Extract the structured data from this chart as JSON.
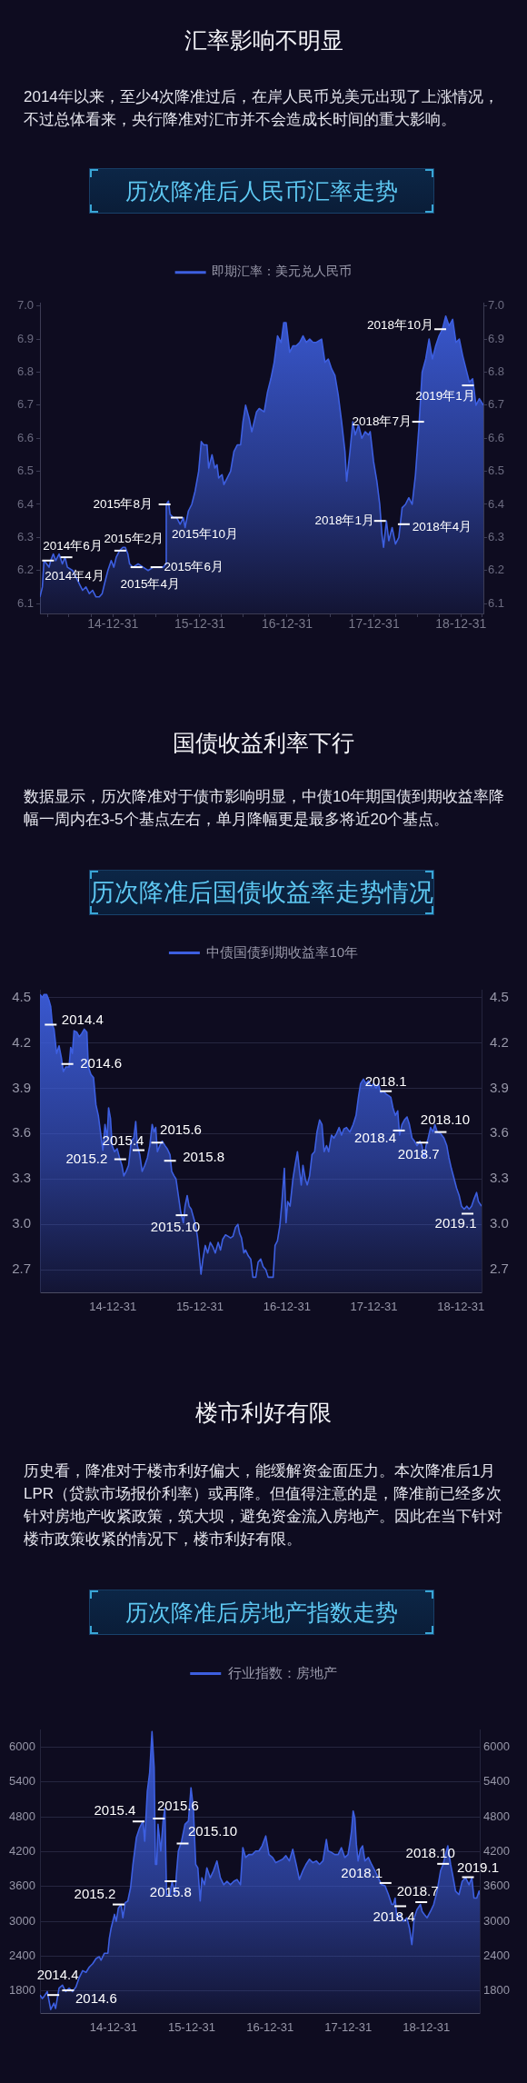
{
  "chart_data": [
    {
      "type": "area",
      "title": "历次降准后人民币汇率走势",
      "annotations": [
        "汇率影响不明显",
        "2014年以来，至少4次降准过后，在岸人民币兑美元出现了上涨情况，不过总体看来，央行降准对汇市并不会造成长时间的重大影响。",
        {
          "text": "2014年4月",
          "x": "2014-04-03",
          "y": 6.23
        },
        {
          "text": "2014年6月",
          "x": "2014-06-19",
          "y": 6.24
        },
        {
          "text": "2015年2月",
          "x": "2015-01-31",
          "y": 6.26
        },
        {
          "text": "2015年4月",
          "x": "2015-04-09",
          "y": 6.21
        },
        {
          "text": "2015年6月",
          "x": "2015-07-02",
          "y": 6.21
        },
        {
          "text": "2015年8月",
          "x": "2015-08-05",
          "y": 6.4
        },
        {
          "text": "2015年10月",
          "x": "2015-09-25",
          "y": 6.36
        },
        {
          "text": "2018年1月",
          "x": "2018-01-25",
          "y": 6.35
        },
        {
          "text": "2018年4月",
          "x": "2018-05-05",
          "y": 6.34
        },
        {
          "text": "2018年7月",
          "x": "2018-07-04",
          "y": 6.65
        },
        {
          "text": "2018年10月",
          "x": "2018-10-05",
          "y": 6.93
        },
        {
          "text": "2019年1月",
          "x": "2019-01-29",
          "y": 6.76
        }
      ],
      "x": [
        "2014-02-28",
        "2014-03-10",
        "2014-03-17",
        "2014-03-28",
        "2014-04-07",
        "2014-04-14",
        "2014-04-25",
        "2014-05-05",
        "2014-05-19",
        "2014-06-02",
        "2014-06-13",
        "2014-06-23",
        "2014-07-15",
        "2014-07-29",
        "2014-08-12",
        "2014-08-26",
        "2014-09-09",
        "2014-09-23",
        "2014-10-07",
        "2014-10-21",
        "2014-11-04",
        "2014-11-16",
        "2014-11-26",
        "2014-12-10",
        "2014-12-24",
        "2015-01-04",
        "2015-01-14",
        "2015-01-28",
        "2015-02-11",
        "2015-02-21",
        "2015-03-04",
        "2015-03-11",
        "2015-03-25",
        "2015-04-16",
        "2015-05-07",
        "2015-05-28",
        "2015-06-18",
        "2015-07-09",
        "2015-07-31",
        "2015-08-10",
        "2015-08-12",
        "2015-08-21",
        "2015-08-28",
        "2015-09-11",
        "2015-09-25",
        "2015-10-09",
        "2015-10-23",
        "2015-10-30",
        "2015-11-13",
        "2015-11-27",
        "2015-12-11",
        "2015-12-26",
        "2016-01-06",
        "2016-01-16",
        "2016-01-30",
        "2016-02-06",
        "2016-02-20",
        "2016-03-03",
        "2016-03-12",
        "2016-03-19",
        "2016-04-02",
        "2016-04-10",
        "2016-04-24",
        "2016-05-08",
        "2016-05-22",
        "2016-06-05",
        "2016-06-19",
        "2016-06-29",
        "2016-07-10",
        "2016-07-25",
        "2016-08-05",
        "2016-08-15",
        "2016-08-25",
        "2016-09-05",
        "2016-09-26",
        "2016-10-10",
        "2016-10-24",
        "2016-11-07",
        "2016-11-21",
        "2016-12-06",
        "2016-12-17",
        "2016-12-27",
        "2017-01-11",
        "2017-01-25",
        "2017-02-08",
        "2017-02-22",
        "2017-03-08",
        "2017-03-22",
        "2017-04-05",
        "2017-04-19",
        "2017-05-03",
        "2017-05-25",
        "2017-06-08",
        "2017-06-22",
        "2017-07-06",
        "2017-07-20",
        "2017-08-03",
        "2017-08-17",
        "2017-08-31",
        "2017-09-07",
        "2017-09-21",
        "2017-10-03",
        "2017-10-13",
        "2017-10-27",
        "2017-11-10",
        "2017-11-24",
        "2017-12-08",
        "2017-12-15",
        "2017-12-29",
        "2018-01-12",
        "2018-01-24",
        "2018-02-02",
        "2018-02-09",
        "2018-02-21",
        "2018-03-03",
        "2018-03-17",
        "2018-03-31",
        "2018-04-14",
        "2018-04-28",
        "2018-05-12",
        "2018-05-26",
        "2018-06-09",
        "2018-06-23",
        "2018-07-07",
        "2018-07-21",
        "2018-08-05",
        "2018-08-19",
        "2018-09-02",
        "2018-09-16",
        "2018-09-30",
        "2018-10-14",
        "2018-10-28",
        "2018-11-11",
        "2018-11-26",
        "2018-12-10",
        "2018-12-24",
        "2019-01-07",
        "2019-01-21",
        "2019-02-04",
        "2019-02-18",
        "2019-03-04",
        "2019-03-18",
        "2019-04-04"
      ],
      "series": [
        {
          "name": "即期汇率：美元兑人民币",
          "color": "#3d5fe0",
          "values": [
            6.12,
            6.15,
            6.23,
            6.22,
            6.21,
            6.23,
            6.25,
            6.23,
            6.25,
            6.22,
            6.24,
            6.21,
            6.2,
            6.18,
            6.16,
            6.14,
            6.15,
            6.13,
            6.14,
            6.12,
            6.12,
            6.13,
            6.16,
            6.2,
            6.23,
            6.21,
            6.24,
            6.26,
            6.27,
            6.27,
            6.25,
            6.22,
            6.21,
            6.22,
            6.21,
            6.2,
            6.21,
            6.21,
            6.21,
            6.22,
            6.4,
            6.41,
            6.37,
            6.36,
            6.36,
            6.34,
            6.36,
            6.33,
            6.38,
            6.4,
            6.44,
            6.5,
            6.59,
            6.58,
            6.58,
            6.51,
            6.55,
            6.51,
            6.52,
            6.48,
            6.49,
            6.46,
            6.48,
            6.5,
            6.56,
            6.58,
            6.58,
            6.65,
            6.7,
            6.66,
            6.62,
            6.65,
            6.68,
            6.69,
            6.68,
            6.74,
            6.78,
            6.83,
            6.91,
            6.89,
            6.95,
            6.95,
            6.86,
            6.88,
            6.88,
            6.89,
            6.91,
            6.89,
            6.9,
            6.89,
            6.89,
            6.9,
            6.83,
            6.84,
            6.81,
            6.79,
            6.73,
            6.65,
            6.56,
            6.47,
            6.56,
            6.65,
            6.61,
            6.64,
            6.6,
            6.62,
            6.61,
            6.62,
            6.53,
            6.47,
            6.4,
            6.31,
            6.27,
            6.35,
            6.29,
            6.33,
            6.28,
            6.3,
            6.39,
            6.4,
            6.42,
            6.4,
            6.49,
            6.63,
            6.8,
            6.84,
            6.9,
            6.84,
            6.88,
            6.91,
            6.93,
            6.97,
            6.94,
            6.96,
            6.89,
            6.9,
            6.85,
            6.81,
            6.77,
            6.78,
            6.7,
            6.72,
            6.7
          ]
        }
      ],
      "xlim": [
        "2014-02-28",
        "2019-04-04"
      ],
      "xticks": [
        {
          "value": "2014-03-31",
          "label": null
        },
        {
          "value": "2014-06-30",
          "label": null
        },
        {
          "value": "2014-09-30",
          "label": null
        },
        {
          "value": "2014-12-31",
          "label": "14-12-31"
        },
        {
          "value": "2015-03-31",
          "label": null
        },
        {
          "value": "2015-06-30",
          "label": null
        },
        {
          "value": "2015-09-30",
          "label": null
        },
        {
          "value": "2015-12-31",
          "label": "15-12-31"
        },
        {
          "value": "2016-03-31",
          "label": null
        },
        {
          "value": "2016-06-30",
          "label": null
        },
        {
          "value": "2016-09-30",
          "label": null
        },
        {
          "value": "2016-12-31",
          "label": "16-12-31"
        },
        {
          "value": "2017-03-31",
          "label": null
        },
        {
          "value": "2017-06-30",
          "label": null
        },
        {
          "value": "2017-09-30",
          "label": null
        },
        {
          "value": "2017-12-31",
          "label": "17-12-31"
        },
        {
          "value": "2018-03-31",
          "label": null
        },
        {
          "value": "2018-06-30",
          "label": null
        },
        {
          "value": "2018-09-30",
          "label": null
        },
        {
          "value": "2018-12-31",
          "label": "18-12-31"
        },
        {
          "value": "2019-03-31",
          "label": null
        }
      ],
      "ylim": [
        6.07,
        7.01
      ],
      "yticks": [
        6.1,
        6.2,
        6.3,
        6.4,
        6.5,
        6.6,
        6.7,
        6.8,
        6.9,
        {
          "value": 7,
          "label": "7.0"
        }
      ],
      "y2lim": [
        6.07,
        7.01
      ],
      "y2ticks": [
        6.1,
        6.2,
        6.3,
        6.4,
        6.5,
        6.6,
        6.7,
        6.8,
        6.9,
        {
          "value": 7,
          "label": "7.0"
        }
      ],
      "grid": false,
      "legend": "top"
    },
    {
      "type": "area",
      "title": "历次降准后国债收益率走势情况",
      "annotations": [
        "国债收益利率下行",
        "数据显示，历次降准对于债市影响明显，中债10年期国债到期收益率降幅一周内在3-5个基点左右，单月降幅更是最多将近20个基点。",
        {
          "text": "2014.4",
          "x": "2014-04-14",
          "y": 4.32
        },
        {
          "text": "2014.6",
          "x": "2014-06-23",
          "y": 4.06
        },
        {
          "text": "2015.2",
          "x": "2015-01-31",
          "y": 3.43
        },
        {
          "text": "2015.4",
          "x": "2015-04-18",
          "y": 3.49
        },
        {
          "text": "2015.6",
          "x": "2015-07-05",
          "y": 3.54
        },
        {
          "text": "2015.8",
          "x": "2015-08-28",
          "y": 3.42
        },
        {
          "text": "2015.10",
          "x": "2015-10-16",
          "y": 3.06
        },
        {
          "text": "2018.1",
          "x": "2018-02-19",
          "y": 3.88
        },
        {
          "text": "2018.4",
          "x": "2018-04-15",
          "y": 3.62
        },
        {
          "text": "2018.7",
          "x": "2018-07-22",
          "y": 3.54
        },
        {
          "text": "2018.10",
          "x": "2018-10-07",
          "y": 3.61
        },
        {
          "text": "2019.1",
          "x": "2019-01-28",
          "y": 3.07
        }
      ],
      "x": [
        "2014-02-28",
        "2014-03-10",
        "2014-03-17",
        "2014-03-28",
        "2014-04-07",
        "2014-04-14",
        "2014-04-21",
        "2014-04-28",
        "2014-05-09",
        "2014-05-19",
        "2014-05-29",
        "2014-06-06",
        "2014-06-16",
        "2014-06-30",
        "2014-07-07",
        "2014-07-14",
        "2014-07-21",
        "2014-08-02",
        "2014-08-12",
        "2014-08-22",
        "2014-09-02",
        "2014-09-13",
        "2014-09-19",
        "2014-09-30",
        "2014-10-11",
        "2014-10-21",
        "2014-10-31",
        "2014-11-09",
        "2014-11-19",
        "2014-11-28",
        "2014-12-07",
        "2014-12-13",
        "2014-12-21",
        "2014-12-28",
        "2015-01-07",
        "2015-01-18",
        "2015-01-28",
        "2015-02-07",
        "2015-02-15",
        "2015-02-25",
        "2015-03-07",
        "2015-03-18",
        "2015-03-29",
        "2015-04-06",
        "2015-04-13",
        "2015-04-23",
        "2015-05-03",
        "2015-05-14",
        "2015-05-25",
        "2015-06-04",
        "2015-06-14",
        "2015-06-22",
        "2015-06-29",
        "2015-07-06",
        "2015-07-16",
        "2015-07-26",
        "2015-08-07",
        "2015-08-16",
        "2015-08-28",
        "2015-09-04",
        "2015-09-14",
        "2015-09-22",
        "2015-10-02",
        "2015-10-12",
        "2015-10-23",
        "2015-10-30",
        "2015-11-08",
        "2015-11-16",
        "2015-11-25",
        "2015-12-02",
        "2015-12-11",
        "2015-12-21",
        "2015-12-28",
        "2016-01-05",
        "2016-01-13",
        "2016-01-23",
        "2016-02-02",
        "2016-02-13",
        "2016-02-24",
        "2016-03-05",
        "2016-03-17",
        "2016-03-27",
        "2016-04-05",
        "2016-04-17",
        "2016-04-28",
        "2016-05-08",
        "2016-05-18",
        "2016-05-29",
        "2016-06-08",
        "2016-06-15",
        "2016-06-23",
        "2016-07-03",
        "2016-07-10",
        "2016-07-22",
        "2016-08-01",
        "2016-08-10",
        "2016-08-22",
        "2016-09-01",
        "2016-09-12",
        "2016-09-22",
        "2016-10-03",
        "2016-10-13",
        "2016-11-03",
        "2016-11-11",
        "2016-11-21",
        "2016-12-01",
        "2016-12-10",
        "2016-12-20",
        "2016-12-27",
        "2017-01-03",
        "2017-01-13",
        "2017-01-25",
        "2017-02-03",
        "2017-02-13",
        "2017-02-22",
        "2017-03-01",
        "2017-03-08",
        "2017-03-18",
        "2017-03-26",
        "2017-04-05",
        "2017-04-15",
        "2017-04-26",
        "2017-05-06",
        "2017-05-17",
        "2017-05-27",
        "2017-06-05",
        "2017-06-15",
        "2017-06-24",
        "2017-07-06",
        "2017-07-16",
        "2017-07-27",
        "2017-08-07",
        "2017-08-17",
        "2017-08-27",
        "2017-09-07",
        "2017-09-21",
        "2017-10-05",
        "2017-10-17",
        "2017-10-27",
        "2017-11-05",
        "2017-11-17",
        "2017-11-28",
        "2017-12-08",
        "2017-12-19",
        "2017-12-29",
        "2018-01-09",
        "2018-01-19",
        "2018-01-29",
        "2018-02-09",
        "2018-02-21",
        "2018-03-03",
        "2018-03-12",
        "2018-03-21",
        "2018-03-31",
        "2018-04-10",
        "2018-04-18",
        "2018-04-28",
        "2018-05-08",
        "2018-05-19",
        "2018-05-29",
        "2018-06-09",
        "2018-06-19",
        "2018-06-30",
        "2018-07-12",
        "2018-07-21",
        "2018-07-29",
        "2018-08-07",
        "2018-08-16",
        "2018-08-26",
        "2018-09-05",
        "2018-09-13",
        "2018-09-23",
        "2018-10-07",
        "2018-10-21",
        "2018-11-02",
        "2018-11-11",
        "2018-11-21",
        "2018-12-03",
        "2018-12-13",
        "2018-12-24",
        "2019-01-03",
        "2019-01-14",
        "2019-01-25",
        "2019-02-04",
        "2019-02-14",
        "2019-02-25",
        "2019-03-07",
        "2019-03-15",
        "2019-03-28"
      ],
      "series": [
        {
          "name": "中债国债到期收益率10年",
          "color": "#3d5fe0",
          "values": [
            4.52,
            4.5,
            4.52,
            4.52,
            4.48,
            4.44,
            4.32,
            4.29,
            4.13,
            4.18,
            4.1,
            4.01,
            4.04,
            4.04,
            4.17,
            4.13,
            4.28,
            4.27,
            4.24,
            4.26,
            4.29,
            4.27,
            4.04,
            3.99,
            3.97,
            3.79,
            3.72,
            3.61,
            3.49,
            3.66,
            3.57,
            3.77,
            3.7,
            3.52,
            3.48,
            3.5,
            3.44,
            3.39,
            3.32,
            3.35,
            3.39,
            3.55,
            3.57,
            3.68,
            3.52,
            3.46,
            3.35,
            3.39,
            3.44,
            3.52,
            3.66,
            3.61,
            3.64,
            3.48,
            3.52,
            3.55,
            3.52,
            3.5,
            3.46,
            3.35,
            3.32,
            3.3,
            3.19,
            3.08,
            3.01,
            3.12,
            3.19,
            3.12,
            3.1,
            3.06,
            3.01,
            2.92,
            2.81,
            2.67,
            2.77,
            2.86,
            2.81,
            2.88,
            2.85,
            2.81,
            2.88,
            2.83,
            2.9,
            2.93,
            2.92,
            2.91,
            2.92,
            2.98,
            3.0,
            2.94,
            2.91,
            2.81,
            2.83,
            2.79,
            2.77,
            2.65,
            2.65,
            2.75,
            2.77,
            2.72,
            2.7,
            2.65,
            2.65,
            2.86,
            2.89,
            2.99,
            3.15,
            3.37,
            3.01,
            3.15,
            3.12,
            3.3,
            3.39,
            3.48,
            3.35,
            3.26,
            3.39,
            3.3,
            3.26,
            3.32,
            3.46,
            3.48,
            3.61,
            3.69,
            3.66,
            3.48,
            3.52,
            3.48,
            3.59,
            3.57,
            3.6,
            3.64,
            3.59,
            3.63,
            3.64,
            3.61,
            3.66,
            3.72,
            3.84,
            3.93,
            3.96,
            3.93,
            3.95,
            3.91,
            3.93,
            3.9,
            3.93,
            3.87,
            3.88,
            3.86,
            3.85,
            3.84,
            3.77,
            3.72,
            3.75,
            3.59,
            3.66,
            3.69,
            3.71,
            3.66,
            3.57,
            3.55,
            3.52,
            3.55,
            3.52,
            3.44,
            3.52,
            3.57,
            3.64,
            3.61,
            3.66,
            3.61,
            3.6,
            3.57,
            3.52,
            3.44,
            3.37,
            3.3,
            3.24,
            3.19,
            3.12,
            3.1,
            3.12,
            3.1,
            3.12,
            3.17,
            3.21,
            3.15,
            3.12
          ]
        }
      ],
      "xlim": [
        "2014-02-28",
        "2019-03-28"
      ],
      "xticks": [
        {
          "value": "2014-12-31",
          "label": "14-12-31"
        },
        {
          "value": "2015-12-31",
          "label": "15-12-31"
        },
        {
          "value": "2016-12-31",
          "label": "16-12-31"
        },
        {
          "value": "2017-12-31",
          "label": "17-12-31"
        },
        {
          "value": "2018-12-31",
          "label": "18-12-31"
        }
      ],
      "ylim": [
        2.55,
        4.55
      ],
      "yticks": [
        2.7,
        {
          "value": 3,
          "label": "3.0"
        },
        3.3,
        3.6,
        3.9,
        4.2,
        4.5
      ],
      "y2lim": [
        2.55,
        4.55
      ],
      "y2ticks": [
        2.7,
        {
          "value": 3,
          "label": "3.0"
        },
        3.3,
        3.6,
        3.9,
        4.2,
        4.5
      ],
      "grid": "y",
      "legend": "top"
    },
    {
      "type": "area",
      "title": "历次降准后房地产指数走势",
      "annotations": [
        "楼市利好有限",
        "历史看，降准对于楼市利好偏大，能缓解资金面压力。本次降准后1月LPR（贷款市场报价利率）或再降。但值得注意的是，降准前已经多次针对房地产收紧政策，筑大坝，避免资金流入房地产。因此在当下针对楼市政策收紧的情况下，楼市利好有限。",
        {
          "text": "2014.4",
          "x": "2014-03-25",
          "y": 1730
        },
        {
          "text": "2014.6",
          "x": "2014-06-02",
          "y": 1810
        },
        {
          "text": "2015.2",
          "x": "2015-01-24",
          "y": 3290
        },
        {
          "text": "2015.4",
          "x": "2015-04-27",
          "y": 4720
        },
        {
          "text": "2015.6",
          "x": "2015-07-31",
          "y": 4770
        },
        {
          "text": "2015.8",
          "x": "2015-09-24",
          "y": 3690
        },
        {
          "text": "2015.10",
          "x": "2015-11-19",
          "y": 4340
        },
        {
          "text": "2018.1",
          "x": "2018-06-23",
          "y": 3660
        },
        {
          "text": "2018.4",
          "x": "2018-08-31",
          "y": 3260
        },
        {
          "text": "2018.7",
          "x": "2018-12-07",
          "y": 3330
        },
        {
          "text": "2018.10",
          "x": "2019-03-19",
          "y": 3990
        },
        {
          "text": "2019.1",
          "x": "2019-07-13",
          "y": 3760
        }
      ],
      "x": [
        "2014-01-22",
        "2014-02-02",
        "2014-02-09",
        "2014-02-25",
        "2014-03-13",
        "2014-03-28",
        "2014-04-05",
        "2014-04-21",
        "2014-05-07",
        "2014-05-22",
        "2014-06-07",
        "2014-06-23",
        "2014-07-09",
        "2014-07-24",
        "2014-08-09",
        "2014-08-25",
        "2014-09-09",
        "2014-09-25",
        "2014-10-11",
        "2014-10-26",
        "2014-11-03",
        "2014-11-19",
        "2014-12-05",
        "2014-12-12",
        "2014-12-20",
        "2015-01-05",
        "2015-01-13",
        "2015-01-23",
        "2015-02-05",
        "2015-02-13",
        "2015-02-24",
        "2015-03-08",
        "2015-03-21",
        "2015-04-01",
        "2015-04-17",
        "2015-05-02",
        "2015-05-18",
        "2015-05-26",
        "2015-06-07",
        "2015-06-18",
        "2015-06-29",
        "2015-07-09",
        "2015-07-15",
        "2015-07-21",
        "2015-07-27",
        "2015-08-09",
        "2015-08-20",
        "2015-08-28",
        "2015-09-05",
        "2015-09-20",
        "2015-10-01",
        "2015-10-14",
        "2015-10-22",
        "2015-10-30",
        "2015-11-14",
        "2015-11-30",
        "2015-12-16",
        "2015-12-28",
        "2016-01-08",
        "2016-01-19",
        "2016-01-29",
        "2016-02-09",
        "2016-02-17",
        "2016-02-29",
        "2016-03-11",
        "2016-03-27",
        "2016-04-11",
        "2016-04-27",
        "2016-05-13",
        "2016-05-29",
        "2016-06-13",
        "2016-06-29",
        "2016-07-15",
        "2016-07-30",
        "2016-08-15",
        "2016-08-26",
        "2016-09-08",
        "2016-09-23",
        "2016-10-09",
        "2016-10-25",
        "2016-11-09",
        "2016-11-24",
        "2016-12-11",
        "2016-12-26",
        "2017-01-12",
        "2017-01-27",
        "2017-02-12",
        "2017-02-28",
        "2017-03-15",
        "2017-03-31",
        "2017-04-16",
        "2017-05-02",
        "2017-05-17",
        "2017-06-02",
        "2017-06-17",
        "2017-07-03",
        "2017-07-19",
        "2017-08-04",
        "2017-08-19",
        "2017-09-04",
        "2017-09-20",
        "2017-09-28",
        "2017-10-13",
        "2017-10-29",
        "2017-11-14",
        "2017-11-29",
        "2017-12-15",
        "2017-12-30",
        "2018-01-07",
        "2018-01-15",
        "2018-01-23",
        "2018-01-31",
        "2018-02-07",
        "2018-02-15",
        "2018-02-26",
        "2018-03-08",
        "2018-03-19",
        "2018-04-04",
        "2018-04-19",
        "2018-05-05",
        "2018-05-20",
        "2018-06-05",
        "2018-06-21",
        "2018-07-07",
        "2018-07-22",
        "2018-07-30",
        "2018-08-07",
        "2018-08-15",
        "2018-08-31",
        "2018-09-15",
        "2018-10-01",
        "2018-10-13",
        "2018-10-24",
        "2018-11-04",
        "2018-11-17",
        "2018-12-03",
        "2018-12-11",
        "2018-12-21",
        "2019-01-03",
        "2019-01-19",
        "2019-02-03",
        "2019-02-19",
        "2019-03-07",
        "2019-03-19",
        "2019-03-30",
        "2019-04-10",
        "2019-04-23",
        "2019-05-05",
        "2019-05-16",
        "2019-06-01",
        "2019-06-16",
        "2019-07-02",
        "2019-07-18",
        "2019-07-31",
        "2019-08-10",
        "2019-08-23",
        "2019-09-03",
        "2019-09-06"
      ],
      "series": [
        {
          "name": "行业指数：房地产",
          "color": "#3d5fe0",
          "values": [
            1730,
            1670,
            1700,
            1790,
            1480,
            1590,
            1500,
            1850,
            1900,
            1790,
            1850,
            1790,
            1870,
            2030,
            2150,
            2120,
            2210,
            2270,
            2360,
            2390,
            2330,
            2450,
            2450,
            2710,
            2880,
            3120,
            3000,
            3230,
            3290,
            3060,
            3320,
            3350,
            3580,
            3980,
            4440,
            4610,
            4730,
            4380,
            5240,
            5560,
            6270,
            5650,
            3980,
            3980,
            4670,
            4210,
            4730,
            4950,
            3460,
            3460,
            3690,
            3460,
            3860,
            4210,
            4380,
            4670,
            4730,
            5300,
            4950,
            3980,
            3920,
            3350,
            3750,
            3630,
            3920,
            3750,
            3870,
            4040,
            3750,
            3630,
            3690,
            3630,
            3690,
            3720,
            3630,
            4270,
            4100,
            4150,
            4150,
            4210,
            4210,
            4300,
            4470,
            4150,
            4100,
            4010,
            4040,
            4070,
            4130,
            4040,
            4240,
            3980,
            3720,
            3870,
            3980,
            4070,
            4010,
            4040,
            3980,
            4040,
            4410,
            4210,
            4190,
            4150,
            4150,
            4270,
            4100,
            4150,
            4330,
            4540,
            4900,
            4780,
            4330,
            4040,
            4240,
            4300,
            4040,
            4100,
            3980,
            3870,
            3750,
            3630,
            3610,
            3460,
            3290,
            3290,
            3400,
            3060,
            3120,
            3000,
            3060,
            2880,
            2600,
            3060,
            3200,
            3290,
            3170,
            3120,
            3060,
            3170,
            3290,
            3520,
            3870,
            3980,
            4150,
            4300,
            3980,
            3750,
            3520,
            3460,
            3690,
            3750,
            3630,
            3750,
            3400,
            3400,
            3520,
            3460
          ]
        }
      ],
      "xlim": [
        "2014-01-22",
        "2019-09-06"
      ],
      "xticks": [
        {
          "value": "2014-12-31",
          "label": "14-12-31"
        },
        {
          "value": "2015-12-31",
          "label": "15-12-31"
        },
        {
          "value": "2016-12-31",
          "label": "16-12-31"
        },
        {
          "value": "2017-12-31",
          "label": "17-12-31"
        },
        {
          "value": "2018-12-31",
          "label": "18-12-31"
        }
      ],
      "ylim": [
        1420,
        6300
      ],
      "yticks": [
        1800,
        2400,
        3000,
        3600,
        4200,
        4800,
        5400,
        6000
      ],
      "y2lim": [
        1420,
        6300
      ],
      "y2ticks": [
        1800,
        2400,
        3000,
        3600,
        4200,
        4800,
        5400,
        6000
      ],
      "grid": "y",
      "legend": "top"
    }
  ]
}
